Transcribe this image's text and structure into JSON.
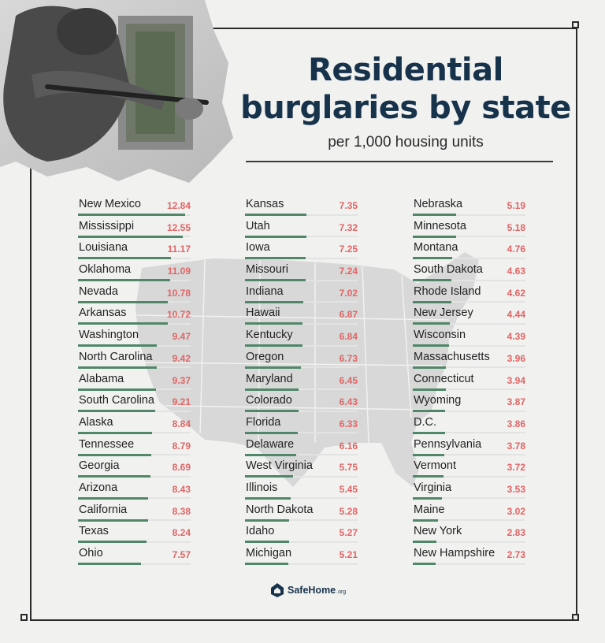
{
  "title_line1": "Residential",
  "title_line2": "burglaries by state",
  "subtitle": "per 1,000 housing units",
  "logo": {
    "name": "SafeHome",
    "suffix": ".org"
  },
  "colors": {
    "value": "#e06565",
    "bar": "#4f8768",
    "title": "#17324b"
  },
  "chart_data": {
    "type": "bar",
    "title": "Residential burglaries by state",
    "subtitle": "per 1,000 housing units",
    "columns": [
      [
        {
          "state": "New Mexico",
          "value": "12.84"
        },
        {
          "state": "Mississippi",
          "value": "12.55"
        },
        {
          "state": "Louisiana",
          "value": "11.17"
        },
        {
          "state": "Oklahoma",
          "value": "11.09"
        },
        {
          "state": "Nevada",
          "value": "10.78"
        },
        {
          "state": "Arkansas",
          "value": "10.72"
        },
        {
          "state": "Washington",
          "value": "9.47"
        },
        {
          "state": "North Carolina",
          "value": "9.42"
        },
        {
          "state": "Alabama",
          "value": "9.37"
        },
        {
          "state": "South Carolina",
          "value": "9.21"
        },
        {
          "state": "Alaska",
          "value": "8.84"
        },
        {
          "state": "Tennessee",
          "value": "8.79"
        },
        {
          "state": "Georgia",
          "value": "8.69"
        },
        {
          "state": "Arizona",
          "value": "8.43"
        },
        {
          "state": "California",
          "value": "8.38"
        },
        {
          "state": "Texas",
          "value": "8.24"
        },
        {
          "state": "Ohio",
          "value": "7.57"
        }
      ],
      [
        {
          "state": "Kansas",
          "value": "7.35"
        },
        {
          "state": "Utah",
          "value": "7.32"
        },
        {
          "state": "Iowa",
          "value": "7.25"
        },
        {
          "state": "Missouri",
          "value": "7.24"
        },
        {
          "state": "Indiana",
          "value": "7.02"
        },
        {
          "state": "Hawaii",
          "value": "6.87"
        },
        {
          "state": "Kentucky",
          "value": "6.84"
        },
        {
          "state": "Oregon",
          "value": "6.73"
        },
        {
          "state": "Maryland",
          "value": "6.45"
        },
        {
          "state": "Colorado",
          "value": "6.43"
        },
        {
          "state": "Florida",
          "value": "6.33"
        },
        {
          "state": "Delaware",
          "value": "6.16"
        },
        {
          "state": "West Virginia",
          "value": "5.75"
        },
        {
          "state": "Illinois",
          "value": "5.45"
        },
        {
          "state": "North Dakota",
          "value": "5.28"
        },
        {
          "state": "Idaho",
          "value": "5.27"
        },
        {
          "state": "Michigan",
          "value": "5.21"
        }
      ],
      [
        {
          "state": "Nebraska",
          "value": "5.19"
        },
        {
          "state": "Minnesota",
          "value": "5.18"
        },
        {
          "state": "Montana",
          "value": "4.76"
        },
        {
          "state": "South Dakota",
          "value": "4.63"
        },
        {
          "state": "Rhode Island",
          "value": "4.62"
        },
        {
          "state": "New Jersey",
          "value": "4.44"
        },
        {
          "state": "Wisconsin",
          "value": "4.39"
        },
        {
          "state": "Massachusetts",
          "value": "3.96"
        },
        {
          "state": "Connecticut",
          "value": "3.94"
        },
        {
          "state": "Wyoming",
          "value": "3.87"
        },
        {
          "state": "D.C.",
          "value": "3.86"
        },
        {
          "state": "Pennsylvania",
          "value": "3.78"
        },
        {
          "state": "Vermont",
          "value": "3.72"
        },
        {
          "state": "Virginia",
          "value": "3.53"
        },
        {
          "state": "Maine",
          "value": "3.02"
        },
        {
          "state": "New York",
          "value": "2.83"
        },
        {
          "state": "New Hampshire",
          "value": "2.73"
        }
      ]
    ]
  }
}
